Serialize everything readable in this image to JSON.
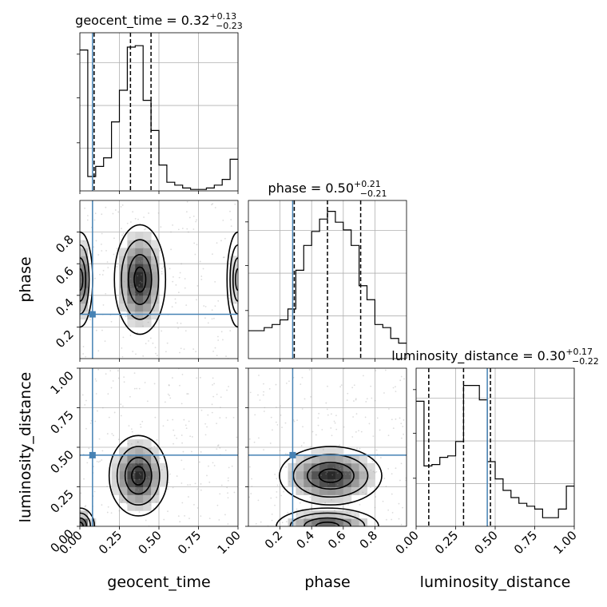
{
  "chart_data": {
    "type": "corner",
    "parameters": [
      "geocent_time",
      "phase",
      "luminosity_distance"
    ],
    "truth": {
      "geocent_time": 0.08,
      "phase": 0.28,
      "luminosity_distance": 0.45
    },
    "axes": {
      "geocent_time": {
        "range": [
          0.0,
          1.0
        ],
        "ticks": [
          "0.00",
          "0.25",
          "0.50",
          "0.75",
          "1.00"
        ],
        "label": "geocent_time"
      },
      "phase": {
        "range": [
          0.0,
          1.0
        ],
        "x_ticks": [
          "0.2",
          "0.4",
          "0.6",
          "0.8"
        ],
        "y_ticks": [
          "0.2",
          "0.4",
          "0.6",
          "0.8"
        ],
        "label": "phase"
      },
      "luminosity_distance": {
        "range": [
          0.0,
          1.0
        ],
        "ticks": [
          "0.00",
          "0.25",
          "0.50",
          "0.75",
          "1.00"
        ],
        "label": "luminosity_distance"
      }
    },
    "marginals": [
      {
        "param": "geocent_time",
        "title": {
          "name": "geocent_time",
          "median": "0.32",
          "plus": "+0.13",
          "minus": "−0.23"
        },
        "quantiles": [
          0.09,
          0.32,
          0.45
        ],
        "bin_edges": [
          0.0,
          0.05,
          0.1,
          0.15,
          0.2,
          0.25,
          0.3,
          0.35,
          0.4,
          0.45,
          0.5,
          0.55,
          0.6,
          0.65,
          0.7,
          0.75,
          0.8,
          0.85,
          0.9,
          0.95,
          1.0
        ],
        "counts": [
          0.98,
          0.1,
          0.17,
          0.23,
          0.48,
          0.7,
          1.0,
          1.01,
          0.63,
          0.42,
          0.18,
          0.06,
          0.04,
          0.02,
          0.01,
          0.01,
          0.02,
          0.04,
          0.08,
          0.22
        ],
        "ylim": [
          0,
          1.1
        ]
      },
      {
        "param": "phase",
        "title": {
          "name": "phase",
          "median": "0.50",
          "plus": "+0.21",
          "minus": "−0.21"
        },
        "quantiles": [
          0.29,
          0.5,
          0.71
        ],
        "bin_edges": [
          0.0,
          0.05,
          0.1,
          0.15,
          0.2,
          0.25,
          0.3,
          0.35,
          0.4,
          0.45,
          0.5,
          0.55,
          0.6,
          0.65,
          0.7,
          0.75,
          0.8,
          0.85,
          0.9,
          0.95,
          1.0
        ],
        "counts": [
          0.18,
          0.18,
          0.2,
          0.22,
          0.25,
          0.32,
          0.57,
          0.73,
          0.82,
          0.9,
          0.95,
          0.88,
          0.83,
          0.73,
          0.47,
          0.38,
          0.22,
          0.2,
          0.13,
          0.1
        ],
        "ylim": [
          0,
          1.02
        ]
      },
      {
        "param": "luminosity_distance",
        "title": {
          "name": "luminosity_distance",
          "median": "0.30",
          "plus": "+0.17",
          "minus": "−0.22"
        },
        "quantiles": [
          0.08,
          0.3,
          0.47
        ],
        "bin_edges": [
          0.0,
          0.05,
          0.1,
          0.15,
          0.2,
          0.25,
          0.3,
          0.35,
          0.4,
          0.45,
          0.5,
          0.55,
          0.6,
          0.65,
          0.7,
          0.75,
          0.8,
          0.85,
          0.9,
          0.95,
          1.0
        ],
        "counts": [
          0.87,
          0.42,
          0.43,
          0.48,
          0.49,
          0.59,
          0.98,
          0.98,
          0.88,
          0.45,
          0.33,
          0.25,
          0.2,
          0.16,
          0.14,
          0.12,
          0.06,
          0.06,
          0.12,
          0.28
        ],
        "ylim": [
          0,
          1.1
        ]
      }
    ],
    "joints": [
      {
        "x": "geocent_time",
        "y": "phase",
        "peaks": [
          {
            "x": 0.38,
            "y": 0.5,
            "sx": 0.07,
            "sy": 0.15,
            "w": 1.0
          },
          {
            "x": 0.0,
            "y": 0.5,
            "sx": 0.035,
            "sy": 0.13,
            "w": 0.8
          },
          {
            "x": 1.0,
            "y": 0.5,
            "sx": 0.03,
            "sy": 0.13,
            "w": 0.3
          }
        ]
      },
      {
        "x": "geocent_time",
        "y": "luminosity_distance",
        "peaks": [
          {
            "x": 0.37,
            "y": 0.32,
            "sx": 0.08,
            "sy": 0.11,
            "w": 1.0
          },
          {
            "x": 0.0,
            "y": 0.0,
            "sx": 0.04,
            "sy": 0.05,
            "w": 0.9
          }
        ]
      },
      {
        "x": "phase",
        "y": "luminosity_distance",
        "peaks": [
          {
            "x": 0.52,
            "y": 0.32,
            "sx": 0.14,
            "sy": 0.08,
            "w": 1.0
          },
          {
            "x": 0.5,
            "y": 0.0,
            "sx": 0.14,
            "sy": 0.05,
            "w": 0.8
          }
        ]
      }
    ]
  }
}
